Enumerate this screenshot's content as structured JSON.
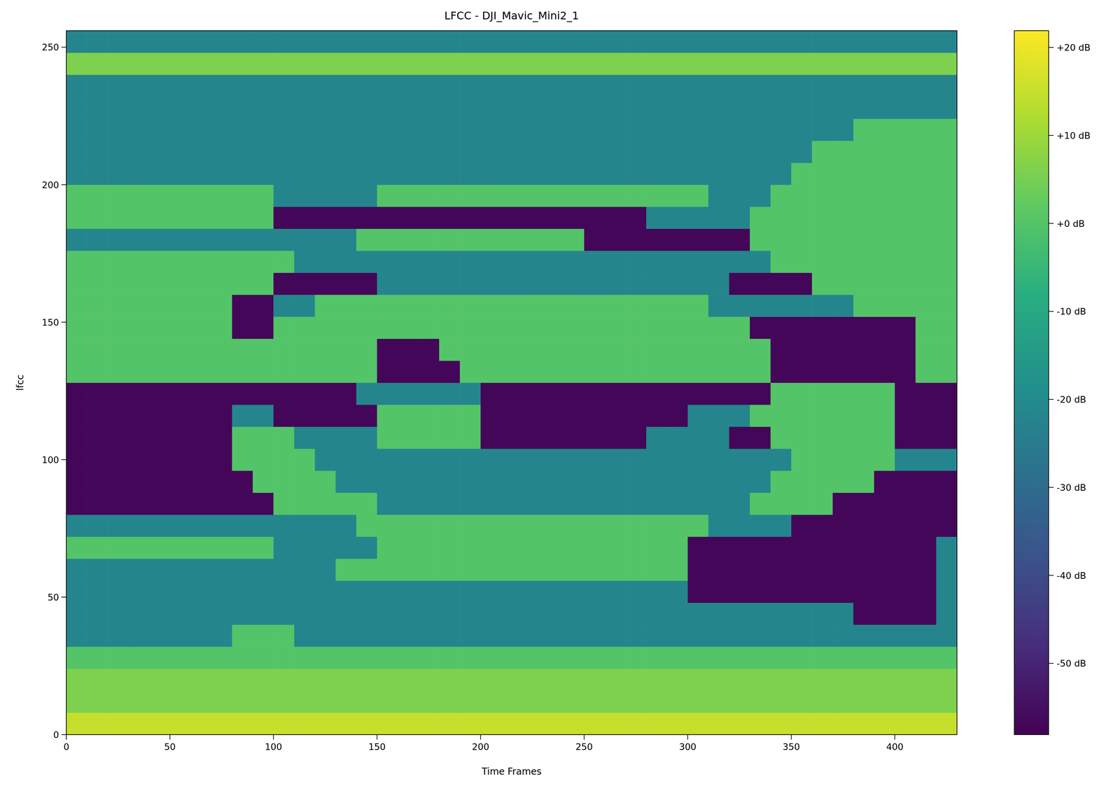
{
  "chart_data": {
    "type": "heatmap",
    "title": "LFCC - DJI_Mavic_Mini2_1",
    "x_label": "Time Frames",
    "y_label": "lfcc",
    "xlim": [
      0,
      430
    ],
    "ylim": [
      0,
      256
    ],
    "xticks": [
      0,
      50,
      100,
      150,
      200,
      250,
      300,
      350,
      400
    ],
    "yticks": [
      0,
      50,
      100,
      150,
      200,
      250
    ],
    "z": [
      [
        15,
        15,
        15,
        15,
        15,
        15,
        15,
        15,
        15,
        15,
        15,
        15,
        15,
        15,
        15,
        15,
        15,
        15,
        15,
        15,
        15,
        15,
        15,
        15,
        15,
        15,
        15,
        15,
        15,
        15,
        15,
        15,
        15,
        15,
        15,
        15,
        15,
        15,
        15,
        15,
        15,
        15,
        15
      ],
      [
        6,
        6,
        6,
        6,
        6,
        6,
        6,
        6,
        6,
        6,
        6,
        6,
        6,
        6,
        6,
        6,
        6,
        6,
        6,
        6,
        6,
        6,
        6,
        6,
        6,
        6,
        6,
        6,
        6,
        6,
        6,
        6,
        6,
        6,
        6,
        6,
        6,
        6,
        6,
        6,
        6,
        6,
        6
      ],
      [
        6,
        6,
        6,
        6,
        6,
        6,
        6,
        6,
        6,
        6,
        6,
        6,
        6,
        6,
        6,
        6,
        6,
        6,
        6,
        6,
        6,
        6,
        6,
        6,
        6,
        6,
        6,
        6,
        6,
        6,
        6,
        6,
        6,
        6,
        6,
        6,
        6,
        6,
        6,
        6,
        6,
        6,
        6
      ],
      [
        0,
        0,
        0,
        0,
        0,
        0,
        0,
        0,
        0,
        0,
        0,
        0,
        0,
        0,
        0,
        0,
        0,
        0,
        0,
        0,
        0,
        0,
        0,
        0,
        0,
        0,
        0,
        0,
        0,
        0,
        0,
        0,
        0,
        0,
        0,
        0,
        0,
        0,
        0,
        0,
        0,
        0,
        0
      ],
      [
        -22,
        -22,
        -22,
        -22,
        -22,
        -22,
        -22,
        -22,
        0,
        0,
        0,
        -22,
        -22,
        -22,
        -22,
        -22,
        -22,
        -22,
        -22,
        -22,
        -22,
        -22,
        -22,
        -22,
        -22,
        -22,
        -22,
        -22,
        -22,
        -22,
        -22,
        -22,
        -22,
        -22,
        -22,
        -22,
        -22,
        -22,
        -22,
        -22,
        -22,
        -22,
        -22
      ],
      [
        -22,
        -22,
        -22,
        -22,
        -22,
        -22,
        -22,
        -22,
        -22,
        -22,
        -22,
        -22,
        -22,
        -22,
        -22,
        -22,
        -22,
        -22,
        -22,
        -22,
        -22,
        -22,
        -22,
        -22,
        -22,
        -22,
        -22,
        -22,
        -22,
        -22,
        -22,
        -22,
        -22,
        -22,
        -22,
        -22,
        -22,
        -22,
        -57,
        -57,
        -57,
        -57,
        -22
      ],
      [
        -22,
        -22,
        -22,
        -22,
        -22,
        -22,
        -22,
        -22,
        -22,
        -22,
        -22,
        -22,
        -22,
        -22,
        -22,
        -22,
        -22,
        -22,
        -22,
        -22,
        -22,
        -22,
        -22,
        -22,
        -22,
        -22,
        -22,
        -22,
        -22,
        -22,
        -57,
        -57,
        -57,
        -57,
        -57,
        -57,
        -57,
        -57,
        -57,
        -57,
        -57,
        -57,
        -22
      ],
      [
        -22,
        -22,
        -22,
        -22,
        -22,
        -22,
        -22,
        -22,
        -22,
        -22,
        -22,
        -22,
        -22,
        0,
        0,
        0,
        0,
        0,
        0,
        0,
        0,
        0,
        0,
        0,
        0,
        0,
        0,
        0,
        0,
        0,
        -57,
        -57,
        -57,
        -57,
        -57,
        -57,
        -57,
        -57,
        -57,
        -57,
        -57,
        -57,
        -22
      ],
      [
        0,
        0,
        0,
        0,
        0,
        0,
        0,
        0,
        0,
        0,
        -22,
        -22,
        -22,
        -22,
        -22,
        0,
        0,
        0,
        0,
        0,
        0,
        0,
        0,
        0,
        0,
        0,
        0,
        0,
        0,
        0,
        -57,
        -57,
        -57,
        -57,
        -57,
        -57,
        -57,
        -57,
        -57,
        -57,
        -57,
        -57,
        -22
      ],
      [
        -22,
        -22,
        -22,
        -22,
        -22,
        -22,
        -22,
        -22,
        -22,
        -22,
        -22,
        -22,
        -22,
        -22,
        0,
        0,
        0,
        0,
        0,
        0,
        0,
        0,
        0,
        0,
        0,
        0,
        0,
        0,
        0,
        0,
        0,
        -22,
        -22,
        -22,
        -22,
        -57,
        -57,
        -57,
        -57,
        -57,
        -57,
        -57,
        -57
      ],
      [
        -57,
        -57,
        -57,
        -57,
        -57,
        -57,
        -57,
        -57,
        -57,
        -57,
        0,
        0,
        0,
        0,
        0,
        -22,
        -22,
        -22,
        -22,
        -22,
        -22,
        -22,
        -22,
        -22,
        -22,
        -22,
        -22,
        -22,
        -22,
        -22,
        -22,
        -22,
        -22,
        0,
        0,
        0,
        0,
        -57,
        -57,
        -57,
        -57,
        -57,
        -57
      ],
      [
        -57,
        -57,
        -57,
        -57,
        -57,
        -57,
        -57,
        -57,
        -57,
        0,
        0,
        0,
        0,
        -22,
        -22,
        -22,
        -22,
        -22,
        -22,
        -22,
        -22,
        -22,
        -22,
        -22,
        -22,
        -22,
        -22,
        -22,
        -22,
        -22,
        -22,
        -22,
        -22,
        -22,
        0,
        0,
        0,
        0,
        0,
        -57,
        -57,
        -57,
        -57
      ],
      [
        -57,
        -57,
        -57,
        -57,
        -57,
        -57,
        -57,
        -57,
        0,
        0,
        0,
        0,
        -22,
        -22,
        -22,
        -22,
        -22,
        -22,
        -22,
        -22,
        -22,
        -22,
        -22,
        -22,
        -22,
        -22,
        -22,
        -22,
        -22,
        -22,
        -22,
        -22,
        -22,
        -22,
        -22,
        0,
        0,
        0,
        0,
        0,
        -22,
        -22,
        -22
      ],
      [
        -57,
        -57,
        -57,
        -57,
        -57,
        -57,
        -57,
        -57,
        0,
        0,
        0,
        -22,
        -22,
        -22,
        -22,
        0,
        0,
        0,
        0,
        0,
        -57,
        -57,
        -57,
        -57,
        -57,
        -57,
        -57,
        -57,
        -22,
        -22,
        -22,
        -22,
        -57,
        -57,
        0,
        0,
        0,
        0,
        0,
        0,
        -57,
        -57,
        -57
      ],
      [
        -57,
        -57,
        -57,
        -57,
        -57,
        -57,
        -57,
        -57,
        -22,
        -22,
        -57,
        -57,
        -57,
        -57,
        -57,
        0,
        0,
        0,
        0,
        0,
        -57,
        -57,
        -57,
        -57,
        -57,
        -57,
        -57,
        -57,
        -57,
        -57,
        -22,
        -22,
        -22,
        0,
        0,
        0,
        0,
        0,
        0,
        0,
        -57,
        -57,
        -57
      ],
      [
        -57,
        -57,
        -57,
        -57,
        -57,
        -57,
        -57,
        -57,
        -57,
        -57,
        -57,
        -57,
        -57,
        -57,
        -22,
        -22,
        -22,
        -22,
        -22,
        -22,
        -57,
        -57,
        -57,
        -57,
        -57,
        -57,
        -57,
        -57,
        -57,
        -57,
        -57,
        -57,
        -57,
        -57,
        0,
        0,
        0,
        0,
        0,
        0,
        -57,
        -57,
        -57
      ],
      [
        0,
        0,
        0,
        0,
        0,
        0,
        0,
        0,
        0,
        0,
        0,
        0,
        0,
        0,
        0,
        -57,
        -57,
        -57,
        -57,
        0,
        0,
        0,
        0,
        0,
        0,
        0,
        0,
        0,
        0,
        0,
        0,
        0,
        0,
        0,
        -57,
        -57,
        -57,
        -57,
        -57,
        -57,
        -57,
        0,
        0
      ],
      [
        0,
        0,
        0,
        0,
        0,
        0,
        0,
        0,
        0,
        0,
        0,
        0,
        0,
        0,
        0,
        -57,
        -57,
        -57,
        0,
        0,
        0,
        0,
        0,
        0,
        0,
        0,
        0,
        0,
        0,
        0,
        0,
        0,
        0,
        0,
        -57,
        -57,
        -57,
        -57,
        -57,
        -57,
        -57,
        0,
        0
      ],
      [
        0,
        0,
        0,
        0,
        0,
        0,
        0,
        0,
        -57,
        -57,
        0,
        0,
        0,
        0,
        0,
        0,
        0,
        0,
        0,
        0,
        0,
        0,
        0,
        0,
        0,
        0,
        0,
        0,
        0,
        0,
        0,
        0,
        0,
        -57,
        -57,
        -57,
        -57,
        -57,
        -57,
        -57,
        -57,
        0,
        0
      ],
      [
        0,
        0,
        0,
        0,
        0,
        0,
        0,
        0,
        -57,
        -57,
        -22,
        -22,
        0,
        0,
        0,
        0,
        0,
        0,
        0,
        0,
        0,
        0,
        0,
        0,
        0,
        0,
        0,
        0,
        0,
        0,
        0,
        -22,
        -22,
        -22,
        -22,
        -22,
        -22,
        -22,
        0,
        0,
        0,
        0,
        0
      ],
      [
        0,
        0,
        0,
        0,
        0,
        0,
        0,
        0,
        0,
        0,
        -57,
        -57,
        -57,
        -57,
        -57,
        -22,
        -22,
        -22,
        -22,
        -22,
        -22,
        -22,
        -22,
        -22,
        -22,
        -22,
        -22,
        -22,
        -22,
        -22,
        -22,
        -22,
        -57,
        -57,
        -57,
        -57,
        0,
        0,
        0,
        0,
        0,
        0,
        0
      ],
      [
        0,
        0,
        0,
        0,
        0,
        0,
        0,
        0,
        0,
        0,
        0,
        -22,
        -22,
        -22,
        -22,
        -22,
        -22,
        -22,
        -22,
        -22,
        -22,
        -22,
        -22,
        -22,
        -22,
        -22,
        -22,
        -22,
        -22,
        -22,
        -22,
        -22,
        -22,
        -22,
        0,
        0,
        0,
        0,
        0,
        0,
        0,
        0,
        0
      ],
      [
        -22,
        -22,
        -22,
        -22,
        -22,
        -22,
        -22,
        -22,
        -22,
        -22,
        -22,
        -22,
        -22,
        -22,
        0,
        0,
        0,
        0,
        0,
        0,
        0,
        0,
        0,
        0,
        0,
        -57,
        -57,
        -57,
        -57,
        -57,
        -57,
        -57,
        -57,
        0,
        0,
        0,
        0,
        0,
        0,
        0,
        0,
        0,
        0
      ],
      [
        0,
        0,
        0,
        0,
        0,
        0,
        0,
        0,
        0,
        0,
        -57,
        -57,
        -57,
        -57,
        -57,
        -57,
        -57,
        -57,
        -57,
        -57,
        -57,
        -57,
        -57,
        -57,
        -57,
        -57,
        -57,
        -57,
        -22,
        -22,
        -22,
        -22,
        -22,
        0,
        0,
        0,
        0,
        0,
        0,
        0,
        0,
        0,
        0
      ],
      [
        0,
        0,
        0,
        0,
        0,
        0,
        0,
        0,
        0,
        0,
        -22,
        -22,
        -22,
        -22,
        -22,
        0,
        0,
        0,
        0,
        0,
        0,
        0,
        0,
        0,
        0,
        0,
        0,
        0,
        0,
        0,
        0,
        -22,
        -22,
        -22,
        0,
        0,
        0,
        0,
        0,
        0,
        0,
        0,
        0
      ],
      [
        -22,
        -22,
        -22,
        -22,
        -22,
        -22,
        -22,
        -22,
        -22,
        -22,
        -22,
        -22,
        -22,
        -22,
        -22,
        -22,
        -22,
        -22,
        -22,
        -22,
        -22,
        -22,
        -22,
        -22,
        -22,
        -22,
        -22,
        -22,
        -22,
        -22,
        -22,
        -22,
        -22,
        -22,
        -22,
        0,
        0,
        0,
        0,
        0,
        0,
        0,
        0
      ],
      [
        -22,
        -22,
        -22,
        -22,
        -22,
        -22,
        -22,
        -22,
        -22,
        -22,
        -22,
        -22,
        -22,
        -22,
        -22,
        -22,
        -22,
        -22,
        -22,
        -22,
        -22,
        -22,
        -22,
        -22,
        -22,
        -22,
        -22,
        -22,
        -22,
        -22,
        -22,
        -22,
        -22,
        -22,
        -22,
        -22,
        0,
        0,
        0,
        0,
        0,
        0,
        0
      ],
      [
        -22,
        -22,
        -22,
        -22,
        -22,
        -22,
        -22,
        -22,
        -22,
        -22,
        -22,
        -22,
        -22,
        -22,
        -22,
        -22,
        -22,
        -22,
        -22,
        -22,
        -22,
        -22,
        -22,
        -22,
        -22,
        -22,
        -22,
        -22,
        -22,
        -22,
        -22,
        -22,
        -22,
        -22,
        -22,
        -22,
        -22,
        -22,
        0,
        0,
        0,
        0,
        0
      ],
      [
        -22,
        -22,
        -22,
        -22,
        -22,
        -22,
        -22,
        -22,
        -22,
        -22,
        -22,
        -22,
        -22,
        -22,
        -22,
        -22,
        -22,
        -22,
        -22,
        -22,
        -22,
        -22,
        -22,
        -22,
        -22,
        -22,
        -22,
        -22,
        -22,
        -22,
        -22,
        -22,
        -22,
        -22,
        -22,
        -22,
        -22,
        -22,
        -22,
        -22,
        -22,
        -22,
        -22
      ],
      [
        -22,
        -22,
        -22,
        -22,
        -22,
        -22,
        -22,
        -22,
        -22,
        -22,
        -22,
        -22,
        -22,
        -22,
        -22,
        -22,
        -22,
        -22,
        -22,
        -22,
        -22,
        -22,
        -22,
        -22,
        -22,
        -22,
        -22,
        -22,
        -22,
        -22,
        -22,
        -22,
        -22,
        -22,
        -22,
        -22,
        -22,
        -22,
        -22,
        -22,
        -22,
        -22,
        -22
      ],
      [
        6,
        6,
        6,
        6,
        6,
        6,
        6,
        6,
        6,
        6,
        6,
        6,
        6,
        6,
        6,
        6,
        6,
        6,
        6,
        6,
        6,
        6,
        6,
        6,
        6,
        6,
        6,
        6,
        6,
        6,
        6,
        6,
        6,
        6,
        6,
        6,
        6,
        6,
        6,
        6,
        6,
        6,
        6
      ],
      [
        -22,
        -22,
        -22,
        -22,
        -22,
        -22,
        -22,
        -22,
        -22,
        -22,
        -22,
        -22,
        -22,
        -22,
        -22,
        -22,
        -22,
        -22,
        -22,
        -22,
        -22,
        -22,
        -22,
        -22,
        -22,
        -22,
        -22,
        -22,
        -22,
        -22,
        -22,
        -22,
        -22,
        -22,
        -22,
        -22,
        -22,
        -22,
        -22,
        -22,
        -22,
        -22,
        -22
      ]
    ],
    "colorbar": {
      "range": [
        -58.1,
        21.9
      ],
      "ticks": [
        {
          "value": 20,
          "label": "+20 dB"
        },
        {
          "value": 10,
          "label": "+10 dB"
        },
        {
          "value": 0,
          "label": "+0 dB"
        },
        {
          "value": -10,
          "label": "-10 dB"
        },
        {
          "value": -20,
          "label": "-20 dB"
        },
        {
          "value": -30,
          "label": "-30 dB"
        },
        {
          "value": -40,
          "label": "-40 dB"
        },
        {
          "value": -50,
          "label": "-50 dB"
        }
      ]
    }
  }
}
